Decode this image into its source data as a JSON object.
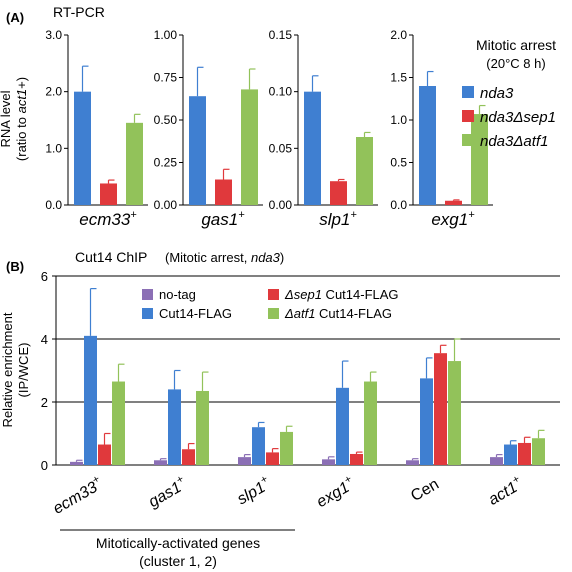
{
  "panelA": {
    "label": "(A)",
    "method": "RT-PCR",
    "ylabel_line1": "RNA level",
    "ylabel_line2_prefix": "(ratio to ",
    "ylabel_line2_gene": "act1",
    "ylabel_line2_suffix": "+)",
    "legend": {
      "title_line1": "Mitotic arrest",
      "title_line2": "(20°C 8 h)",
      "entries": [
        "nda3",
        "nda3Δsep1",
        "nda3Δatf1"
      ]
    }
  },
  "panelB": {
    "label": "(B)",
    "method": "Cut14 ChIP",
    "condition_prefix": "(Mitotic arrest, ",
    "condition_gene": "nda3",
    "condition_suffix": ")",
    "ylabel_line1": "Relative enrichment",
    "ylabel_line2": "(IP/WCE)",
    "legend": {
      "notag": "no-tag",
      "flag": "Cut14-FLAG",
      "sep1_delta": "Δ",
      "sep1_gene": "sep1",
      "sep1_rest": " Cut14-FLAG",
      "atf1_delta": "Δ",
      "atf1_gene": "atf1",
      "atf1_rest": " Cut14-FLAG"
    },
    "group_label_line1": "Mitotically-activated genes",
    "group_label_line2": "(cluster 1, 2)"
  },
  "colors": {
    "nda3": "#3f7fd1",
    "sep1": "#e0393c",
    "atf1": "#92c25a",
    "notag": "#8b6fb5"
  },
  "chart_data": [
    {
      "type": "bar",
      "panel": "A",
      "gene": "ecm33",
      "gene_sup": "+",
      "ylim": [
        0,
        3.0
      ],
      "yticks": [
        "0.0",
        "1.0",
        "2.0",
        "3.0"
      ],
      "series": [
        {
          "name": "nda3",
          "value": 2.0,
          "error": 0.45
        },
        {
          "name": "nda3Δsep1",
          "value": 0.38,
          "error": 0.06
        },
        {
          "name": "nda3Δatf1",
          "value": 1.45,
          "error": 0.15
        }
      ]
    },
    {
      "type": "bar",
      "panel": "A",
      "gene": "gas1",
      "gene_sup": "+",
      "ylim": [
        0,
        1.0
      ],
      "yticks": [
        "0.00",
        "0.25",
        "0.50",
        "0.75",
        "1.00"
      ],
      "series": [
        {
          "name": "nda3",
          "value": 0.64,
          "error": 0.17
        },
        {
          "name": "nda3Δsep1",
          "value": 0.15,
          "error": 0.06
        },
        {
          "name": "nda3Δatf1",
          "value": 0.68,
          "error": 0.12
        }
      ]
    },
    {
      "type": "bar",
      "panel": "A",
      "gene": "slp1",
      "gene_sup": "+",
      "ylim": [
        0,
        0.15
      ],
      "yticks": [
        "0.00",
        "0.05",
        "0.10",
        "0.15"
      ],
      "series": [
        {
          "name": "nda3",
          "value": 0.1,
          "error": 0.014
        },
        {
          "name": "nda3Δsep1",
          "value": 0.021,
          "error": 0.0015
        },
        {
          "name": "nda3Δatf1",
          "value": 0.06,
          "error": 0.004
        }
      ]
    },
    {
      "type": "bar",
      "panel": "A",
      "gene": "exg1",
      "gene_sup": "+",
      "ylim": [
        0,
        2.0
      ],
      "yticks": [
        "0.0",
        "0.5",
        "1.0",
        "1.5",
        "2.0"
      ],
      "series": [
        {
          "name": "nda3",
          "value": 1.4,
          "error": 0.17
        },
        {
          "name": "nda3Δsep1",
          "value": 0.05,
          "error": 0.01
        },
        {
          "name": "nda3Δatf1",
          "value": 1.07,
          "error": 0.1
        }
      ]
    },
    {
      "type": "bar",
      "panel": "B",
      "categories": [
        {
          "name": "ecm33",
          "sup": "+",
          "italic": true
        },
        {
          "name": "gas1",
          "sup": "+",
          "italic": true
        },
        {
          "name": "slp1",
          "sup": "+",
          "italic": true
        },
        {
          "name": "exg1",
          "sup": "+",
          "italic": true
        },
        {
          "name": "Cen",
          "sup": "",
          "italic": false
        },
        {
          "name": "act1",
          "sup": "+",
          "italic": true
        }
      ],
      "ylim": [
        0,
        6
      ],
      "yticks": [
        "0",
        "2",
        "4",
        "6"
      ],
      "grid": true,
      "series": [
        {
          "name": "no-tag",
          "values": [
            0.1,
            0.15,
            0.25,
            0.18,
            0.15,
            0.25
          ],
          "errors": [
            0.05,
            0.05,
            0.08,
            0.08,
            0.05,
            0.08
          ]
        },
        {
          "name": "Cut14-FLAG",
          "values": [
            4.1,
            2.4,
            1.2,
            2.45,
            2.75,
            0.65
          ],
          "errors": [
            1.5,
            0.6,
            0.15,
            0.85,
            0.65,
            0.12
          ]
        },
        {
          "name": "Δsep1 Cut14-FLAG",
          "values": [
            0.65,
            0.5,
            0.4,
            0.35,
            3.55,
            0.7
          ],
          "errors": [
            0.35,
            0.18,
            0.12,
            0.06,
            0.25,
            0.18
          ]
        },
        {
          "name": "Δatf1 Cut14-FLAG",
          "values": [
            2.65,
            2.35,
            1.05,
            2.65,
            3.3,
            0.85
          ],
          "errors": [
            0.55,
            0.6,
            0.18,
            0.3,
            0.7,
            0.25
          ]
        }
      ]
    }
  ]
}
